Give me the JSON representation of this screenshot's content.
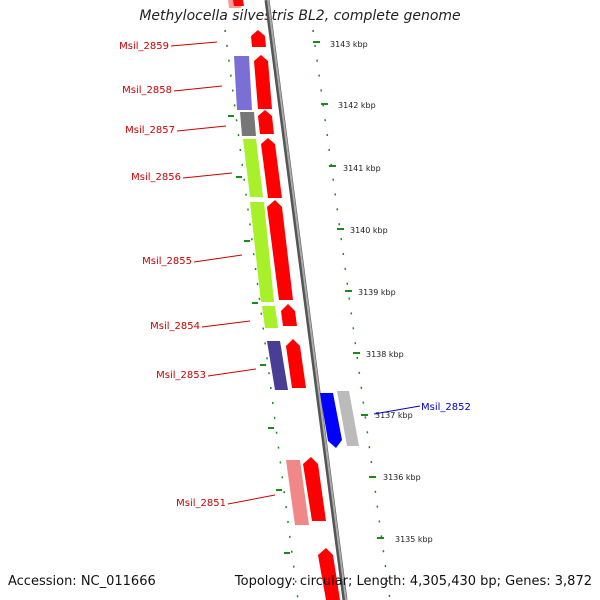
{
  "header": {
    "title": "Methylocella silvestris BL2, complete genome"
  },
  "footer": {
    "accession": "Accession: NC_011666",
    "summary": "Topology: circular; Length: 4,305,430 bp; Genes: 3,872"
  },
  "colors": {
    "forward_gene": "#ff0000",
    "reverse_gene": "#0000ff",
    "label_red": "#cc0000",
    "label_blue": "#0000cc",
    "tick_green": "#1a8a1a",
    "backbone": "#888888"
  },
  "kbp_ticks": [
    "3143 kbp",
    "3142 kbp",
    "3141 kbp",
    "3140 kbp",
    "3139 kbp",
    "3138 kbp",
    "3137 kbp",
    "3136 kbp",
    "3135 kbp"
  ],
  "genes": [
    {
      "label": "Msil_2859",
      "strand": "forward",
      "cog_color": "#ff9999"
    },
    {
      "label": "Msil_2858",
      "strand": "forward",
      "cog_color": "#7b6fd6"
    },
    {
      "label": "Msil_2857",
      "strand": "forward",
      "cog_color": "#777777"
    },
    {
      "label": "Msil_2856",
      "strand": "forward",
      "cog_color": "#a8f02a"
    },
    {
      "label": "Msil_2855",
      "strand": "forward",
      "cog_color": "#a8f02a"
    },
    {
      "label": "Msil_2854",
      "strand": "forward",
      "cog_color": "#a8f02a"
    },
    {
      "label": "Msil_2853",
      "strand": "forward",
      "cog_color": "#4a3d94"
    },
    {
      "label": "Msil_2852",
      "strand": "reverse",
      "cog_color": "#bbbbbb"
    },
    {
      "label": "Msil_2851",
      "strand": "forward",
      "cog_color": "#f08888"
    }
  ]
}
